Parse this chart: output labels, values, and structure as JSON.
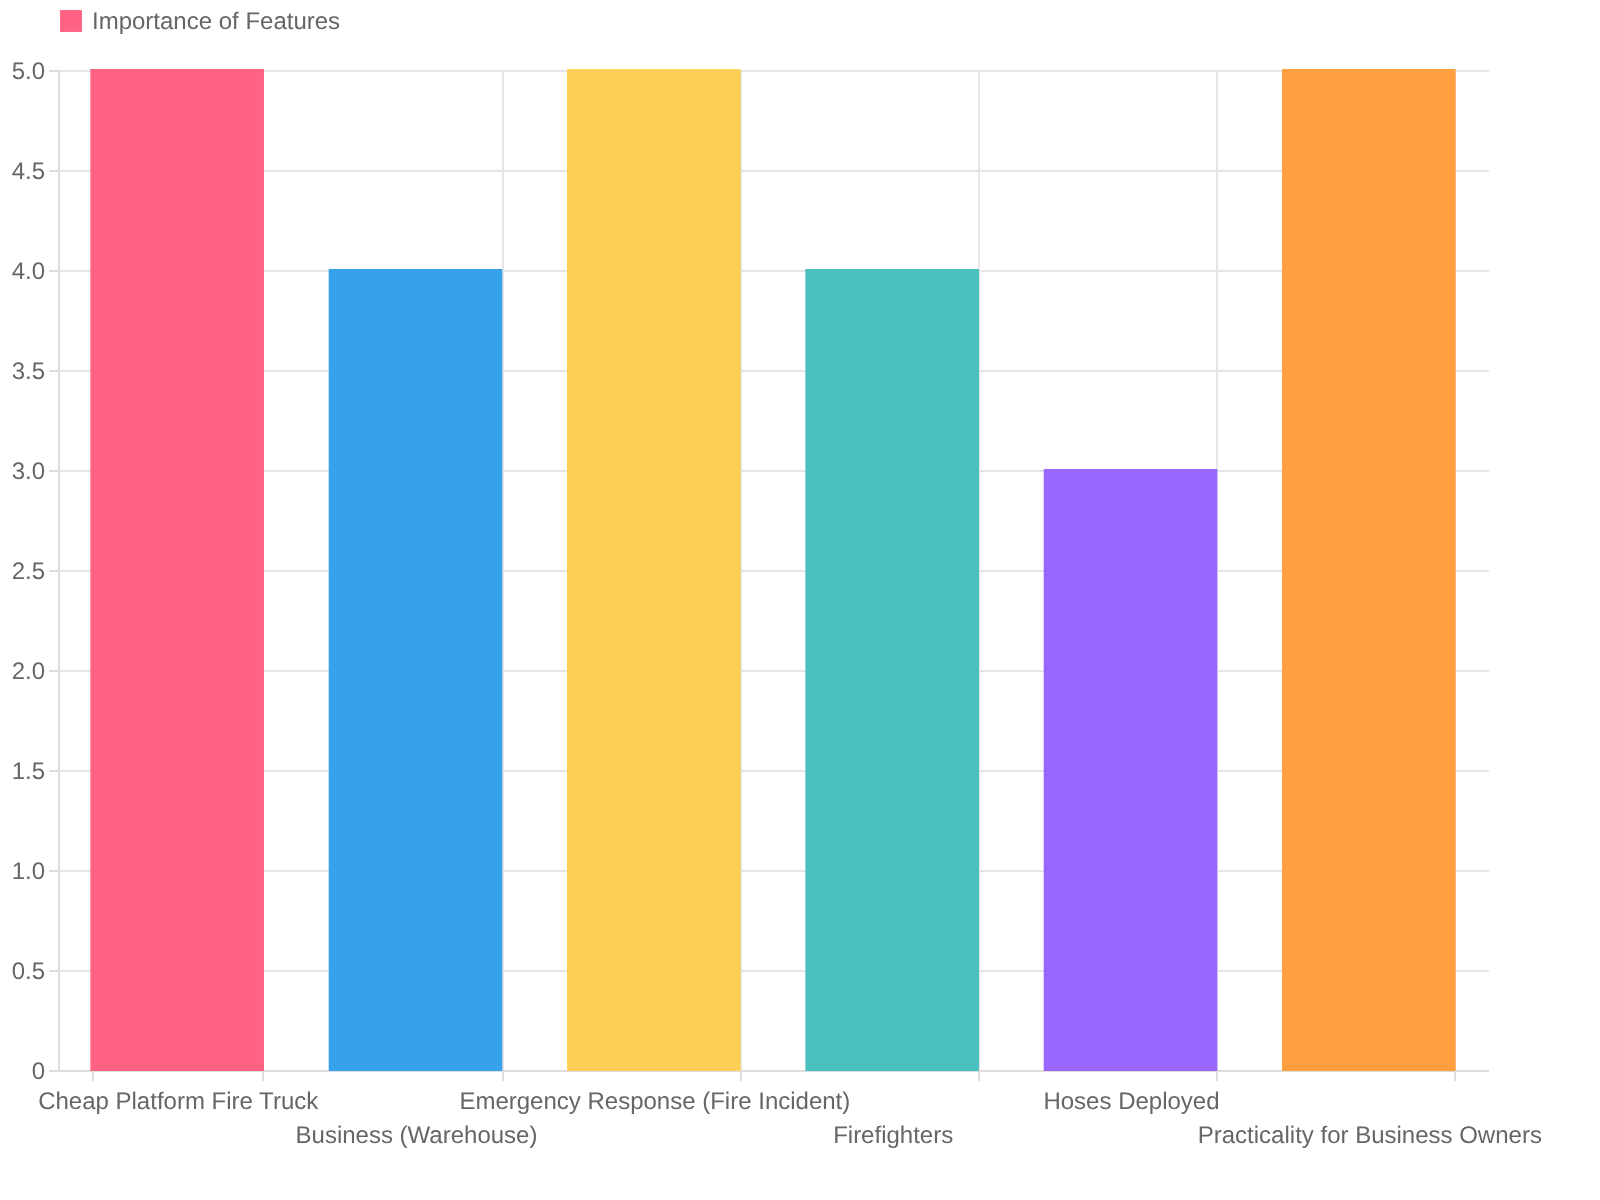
{
  "chart_data": {
    "type": "bar",
    "categories": [
      "Cheap Platform Fire Truck",
      "Business (Warehouse)",
      "Emergency Response (Fire Incident)",
      "Firefighters",
      "Hoses Deployed",
      "Practicality for Business Owners"
    ],
    "series": [
      {
        "name": "Importance of Features",
        "color": "#ff6384",
        "colors": [
          "#ff6384",
          "#36a2eb",
          "#ffce56",
          "#4bc0c0",
          "#9966ff",
          "#ff9f40"
        ],
        "values": [
          5,
          4,
          5,
          4,
          3,
          5
        ]
      }
    ],
    "ylim": [
      0,
      5
    ],
    "yticks": [
      0,
      0.5,
      {
        "value": 1,
        "label": "1.0"
      },
      1.5,
      {
        "value": 2,
        "label": "2.0"
      },
      2.5,
      {
        "value": 3,
        "label": "3.0"
      },
      3.5,
      {
        "value": 4,
        "label": "4.0"
      },
      4.5,
      {
        "value": 5,
        "label": "5.0"
      }
    ],
    "grid": true,
    "legend": "top"
  }
}
